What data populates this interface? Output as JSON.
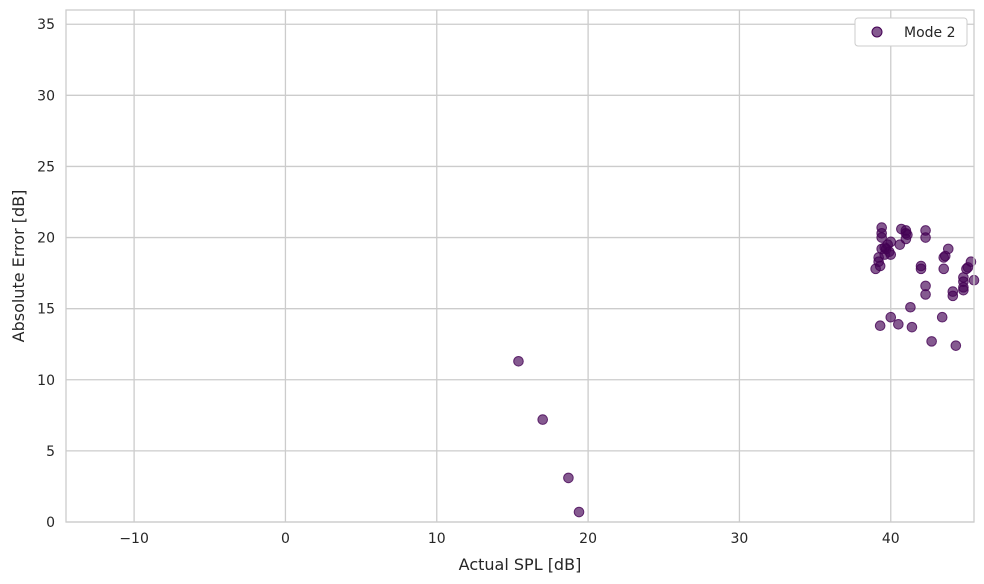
{
  "chart_data": {
    "type": "scatter",
    "xlabel": "Actual SPL [dB]",
    "ylabel": "Absolute Error [dB]",
    "xlim": [
      -14.5,
      45.5
    ],
    "ylim": [
      0,
      36
    ],
    "xticks": [
      -10,
      0,
      10,
      20,
      30,
      40
    ],
    "yticks": [
      0,
      5,
      10,
      15,
      20,
      25,
      30,
      35
    ],
    "grid": true,
    "legend_position": "top-right",
    "colors": {
      "marker": "#440154",
      "grid": "#cccccc",
      "spine": "#cccccc"
    },
    "series": [
      {
        "name": "Mode 2",
        "points": [
          [
            15.4,
            11.3
          ],
          [
            17.0,
            7.2
          ],
          [
            18.7,
            3.1
          ],
          [
            19.4,
            0.7
          ],
          [
            39.0,
            17.8
          ],
          [
            39.2,
            18.3
          ],
          [
            39.2,
            18.6
          ],
          [
            39.3,
            13.8
          ],
          [
            39.3,
            18.0
          ],
          [
            39.4,
            19.2
          ],
          [
            39.4,
            20.0
          ],
          [
            39.4,
            20.3
          ],
          [
            39.4,
            20.7
          ],
          [
            39.6,
            18.8
          ],
          [
            39.6,
            19.3
          ],
          [
            39.7,
            19.2
          ],
          [
            39.8,
            19.5
          ],
          [
            39.9,
            19.0
          ],
          [
            40.0,
            19.7
          ],
          [
            40.0,
            18.8
          ],
          [
            40.0,
            14.4
          ],
          [
            40.5,
            13.9
          ],
          [
            40.6,
            19.5
          ],
          [
            40.7,
            20.6
          ],
          [
            41.0,
            20.5
          ],
          [
            41.0,
            20.3
          ],
          [
            41.0,
            19.9
          ],
          [
            41.1,
            20.2
          ],
          [
            41.3,
            15.1
          ],
          [
            41.4,
            13.7
          ],
          [
            42.0,
            18.0
          ],
          [
            42.0,
            17.8
          ],
          [
            42.3,
            20.5
          ],
          [
            42.3,
            20.0
          ],
          [
            42.3,
            16.6
          ],
          [
            42.3,
            16.0
          ],
          [
            42.7,
            12.7
          ],
          [
            43.4,
            14.4
          ],
          [
            43.5,
            18.6
          ],
          [
            43.5,
            17.8
          ],
          [
            43.6,
            18.7
          ],
          [
            43.8,
            19.2
          ],
          [
            44.1,
            16.2
          ],
          [
            44.1,
            15.9
          ],
          [
            44.3,
            12.4
          ],
          [
            44.8,
            17.2
          ],
          [
            44.8,
            16.9
          ],
          [
            44.8,
            16.5
          ],
          [
            44.8,
            16.3
          ],
          [
            45.0,
            17.8
          ],
          [
            45.1,
            17.9
          ],
          [
            45.3,
            18.3
          ],
          [
            45.5,
            17.0
          ]
        ]
      }
    ]
  }
}
